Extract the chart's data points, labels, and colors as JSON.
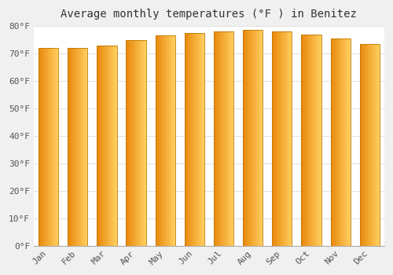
{
  "title": "Average monthly temperatures (°F ) in Benitez",
  "months": [
    "Jan",
    "Feb",
    "Mar",
    "Apr",
    "May",
    "Jun",
    "Jul",
    "Aug",
    "Sep",
    "Oct",
    "Nov",
    "Dec"
  ],
  "values": [
    72,
    72,
    73,
    75,
    76.5,
    77.5,
    78,
    78.5,
    78,
    77,
    75.5,
    73.5
  ],
  "ylim": [
    0,
    80
  ],
  "yticks": [
    0,
    10,
    20,
    30,
    40,
    50,
    60,
    70,
    80
  ],
  "ytick_labels": [
    "0°F",
    "10°F",
    "20°F",
    "30°F",
    "40°F",
    "50°F",
    "60°F",
    "70°F",
    "80°F"
  ],
  "bar_color_left": "#E8860A",
  "bar_color_right": "#FFD060",
  "background_color": "#f0f0f0",
  "plot_bg_color": "#ffffff",
  "grid_color": "#e0e0e0",
  "title_fontsize": 10,
  "tick_fontsize": 8,
  "bar_edge_color": "#C07800",
  "bar_width": 0.68,
  "figsize": [
    5.0,
    3.5
  ],
  "dpi": 100
}
